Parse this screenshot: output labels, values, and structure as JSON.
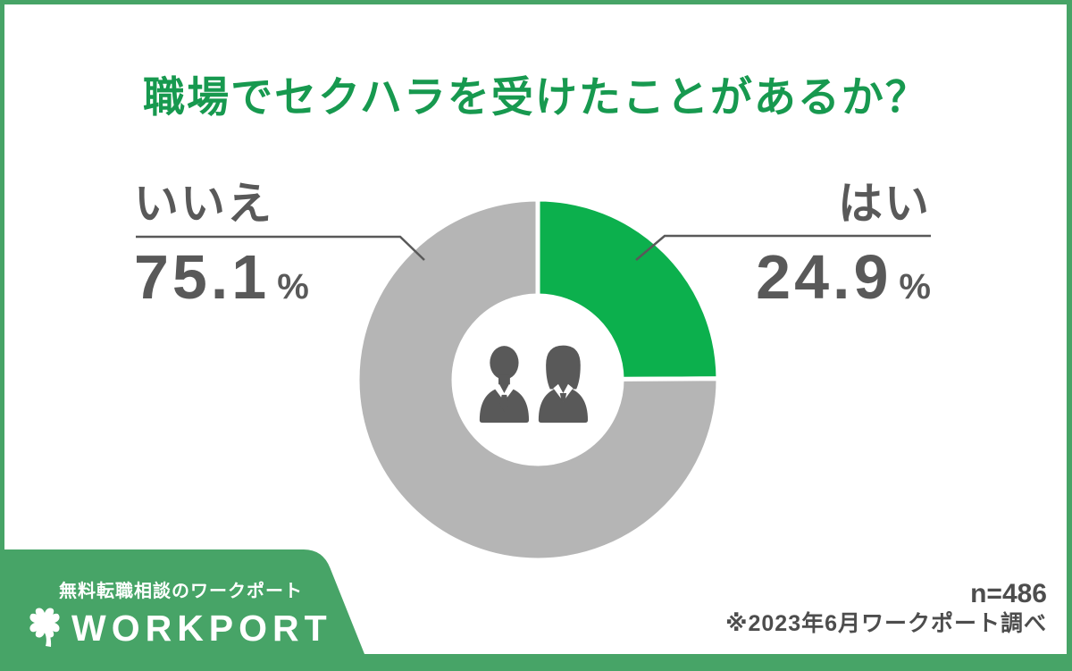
{
  "colors": {
    "brand_green_frame": "#47a467",
    "title_green": "#17994f",
    "slice_green": "#0cb04d",
    "slice_gray": "#b5b5b5",
    "text_gray": "#595959",
    "note_gray": "#4d4d4d",
    "background": "#ffffff"
  },
  "chart_data": {
    "type": "pie",
    "style": "donut",
    "title": "職場でセクハラを受けたことがあるか？",
    "start_angle_deg": -90,
    "direction": "clockwise",
    "segments": [
      {
        "label": "はい",
        "value": 24.9,
        "display_value": "24.9",
        "unit": "%",
        "color": "#0cb04d"
      },
      {
        "label": "いいえ",
        "value": 75.1,
        "display_value": "75.1",
        "unit": "%",
        "color": "#b5b5b5"
      }
    ],
    "center_icon": "two-business-people",
    "sample_size": "n=486",
    "source_note": "※2023年6月ワークポート調べ"
  },
  "footer": {
    "banner_text": "無料転職相談のワークポート",
    "logo_text": "WORKPORT",
    "logo_icon": "four-leaf-clover"
  }
}
